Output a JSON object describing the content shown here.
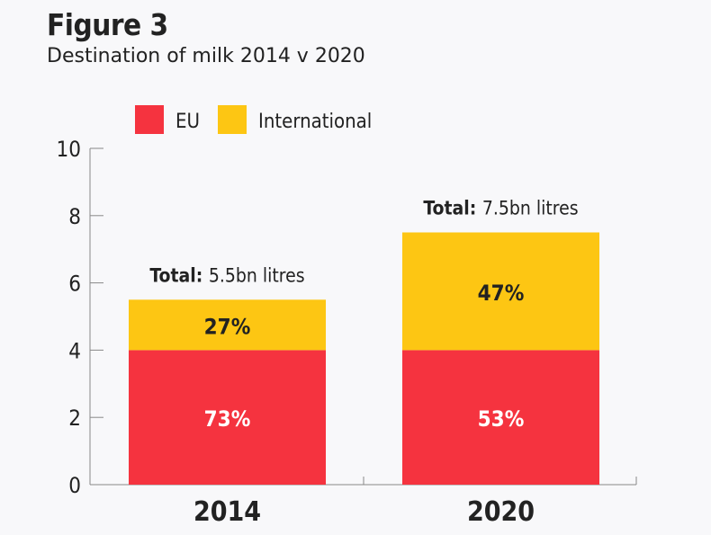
{
  "chart_data": {
    "type": "bar",
    "stacked": true,
    "title": "Figure 3",
    "subtitle": "Destination of milk 2014 v 2020",
    "categories": [
      "2014",
      "2020"
    ],
    "series": [
      {
        "name": "EU",
        "color": "#f5333f",
        "values": [
          4,
          4
        ],
        "labels": [
          "73%",
          "53%"
        ]
      },
      {
        "name": "International",
        "color": "#fdc613",
        "values": [
          1.5,
          3.5
        ],
        "labels": [
          "27%",
          "47%"
        ]
      }
    ],
    "totals": [
      {
        "prefix": "Total:",
        "text": "5.5bn litres"
      },
      {
        "prefix": "Total:",
        "text": "7.5bn litres"
      }
    ],
    "ylim": [
      0,
      10
    ],
    "yticks": [
      0,
      2,
      4,
      6,
      8,
      10
    ],
    "xlabel": "",
    "ylabel": "",
    "grid": false,
    "legend_position": "top"
  }
}
